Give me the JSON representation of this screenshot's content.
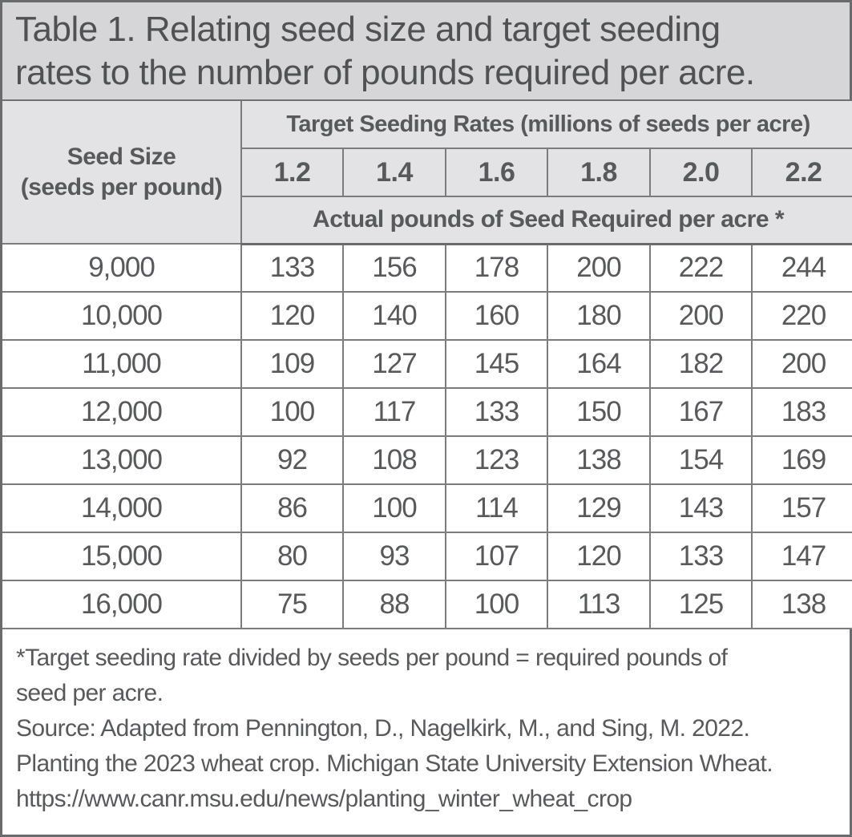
{
  "table": {
    "title_lines": [
      "Table 1. Relating seed size and target seeding",
      "rates to the number of pounds required per acre."
    ],
    "header": {
      "seed_size_label": "Seed Size\n(seeds per pound)",
      "rates_label": "Target Seeding Rates (millions of seeds per acre)",
      "rate_columns": [
        "1.2",
        "1.4",
        "1.6",
        "1.8",
        "2.0",
        "2.2"
      ],
      "actual_label": "Actual pounds of Seed Required per acre *"
    },
    "rows": [
      {
        "seed_size": "9,000",
        "values": [
          "133",
          "156",
          "178",
          "200",
          "222",
          "244"
        ]
      },
      {
        "seed_size": "10,000",
        "values": [
          "120",
          "140",
          "160",
          "180",
          "200",
          "220"
        ]
      },
      {
        "seed_size": "11,000",
        "values": [
          "109",
          "127",
          "145",
          "164",
          "182",
          "200"
        ]
      },
      {
        "seed_size": "12,000",
        "values": [
          "100",
          "117",
          "133",
          "150",
          "167",
          "183"
        ]
      },
      {
        "seed_size": "13,000",
        "values": [
          "92",
          "108",
          "123",
          "138",
          "154",
          "169"
        ]
      },
      {
        "seed_size": "14,000",
        "values": [
          "86",
          "100",
          "114",
          "129",
          "143",
          "157"
        ]
      },
      {
        "seed_size": "15,000",
        "values": [
          "80",
          "93",
          "107",
          "120",
          "133",
          "147"
        ]
      },
      {
        "seed_size": "16,000",
        "values": [
          "75",
          "88",
          "100",
          "113",
          "125",
          "138"
        ]
      }
    ],
    "footer_lines": [
      "*Target seeding rate divided by seeds per pound = required pounds of",
      "seed per acre.",
      "Source: Adapted from Pennington, D., Nagelkirk, M., and Sing, M. 2022.",
      "Planting the 2023 wheat crop. Michigan State University Extension Wheat.",
      "https://www.canr.msu.edu/news/planting_winter_wheat_crop"
    ],
    "colors": {
      "text": "#58595b",
      "title_background": "#d6d6d8",
      "header_background": "#e3e3e5",
      "body_background": "#ffffff",
      "border": "#7b7c7e",
      "outer_border": "#6a6b6d"
    }
  }
}
